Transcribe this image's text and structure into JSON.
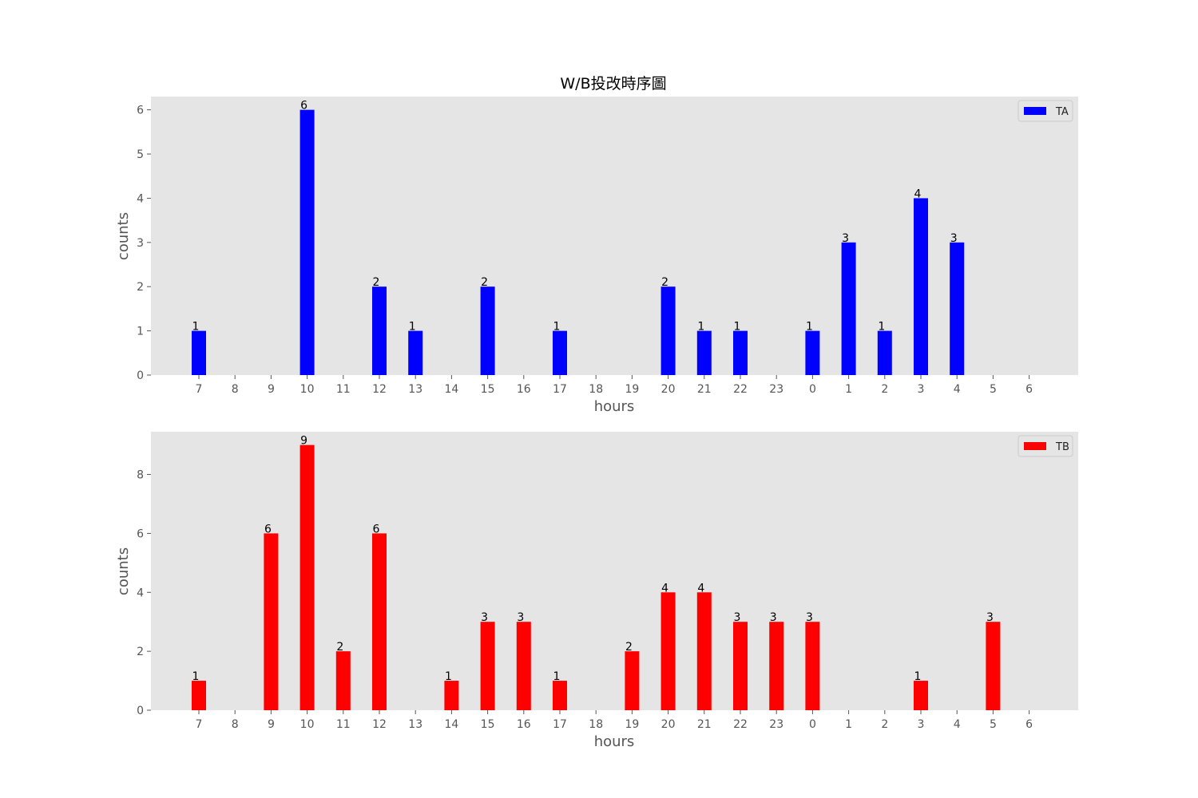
{
  "chart_data": [
    {
      "type": "bar",
      "title": "W/B投改時序圖",
      "xlabel": "hours",
      "ylabel": "counts",
      "categories": [
        "7",
        "8",
        "9",
        "10",
        "11",
        "12",
        "13",
        "14",
        "15",
        "16",
        "17",
        "18",
        "19",
        "20",
        "21",
        "22",
        "23",
        "0",
        "1",
        "2",
        "3",
        "4",
        "5",
        "6"
      ],
      "series": [
        {
          "name": "TA",
          "color": "#0000ff",
          "values": [
            1,
            0,
            0,
            6,
            0,
            2,
            1,
            0,
            2,
            0,
            1,
            0,
            0,
            2,
            1,
            1,
            0,
            1,
            3,
            1,
            4,
            3,
            0,
            0
          ]
        }
      ],
      "ylim": [
        0,
        6.3
      ],
      "yticks": [
        0,
        1,
        2,
        3,
        4,
        5,
        6
      ],
      "legend_position": "top-right",
      "grid": false,
      "background": "#e5e5e5"
    },
    {
      "type": "bar",
      "xlabel": "hours",
      "ylabel": "counts",
      "categories": [
        "7",
        "8",
        "9",
        "10",
        "11",
        "12",
        "13",
        "14",
        "15",
        "16",
        "17",
        "18",
        "19",
        "20",
        "21",
        "22",
        "23",
        "0",
        "1",
        "2",
        "3",
        "4",
        "5",
        "6"
      ],
      "series": [
        {
          "name": "TB",
          "color": "#ff0000",
          "values": [
            1,
            0,
            6,
            9,
            2,
            6,
            0,
            1,
            3,
            3,
            1,
            0,
            2,
            4,
            4,
            3,
            3,
            3,
            0,
            0,
            1,
            0,
            3,
            0
          ]
        }
      ],
      "ylim": [
        0,
        9.45
      ],
      "yticks": [
        0,
        2,
        4,
        6,
        8
      ],
      "legend_position": "top-right",
      "grid": false,
      "background": "#e5e5e5"
    }
  ]
}
